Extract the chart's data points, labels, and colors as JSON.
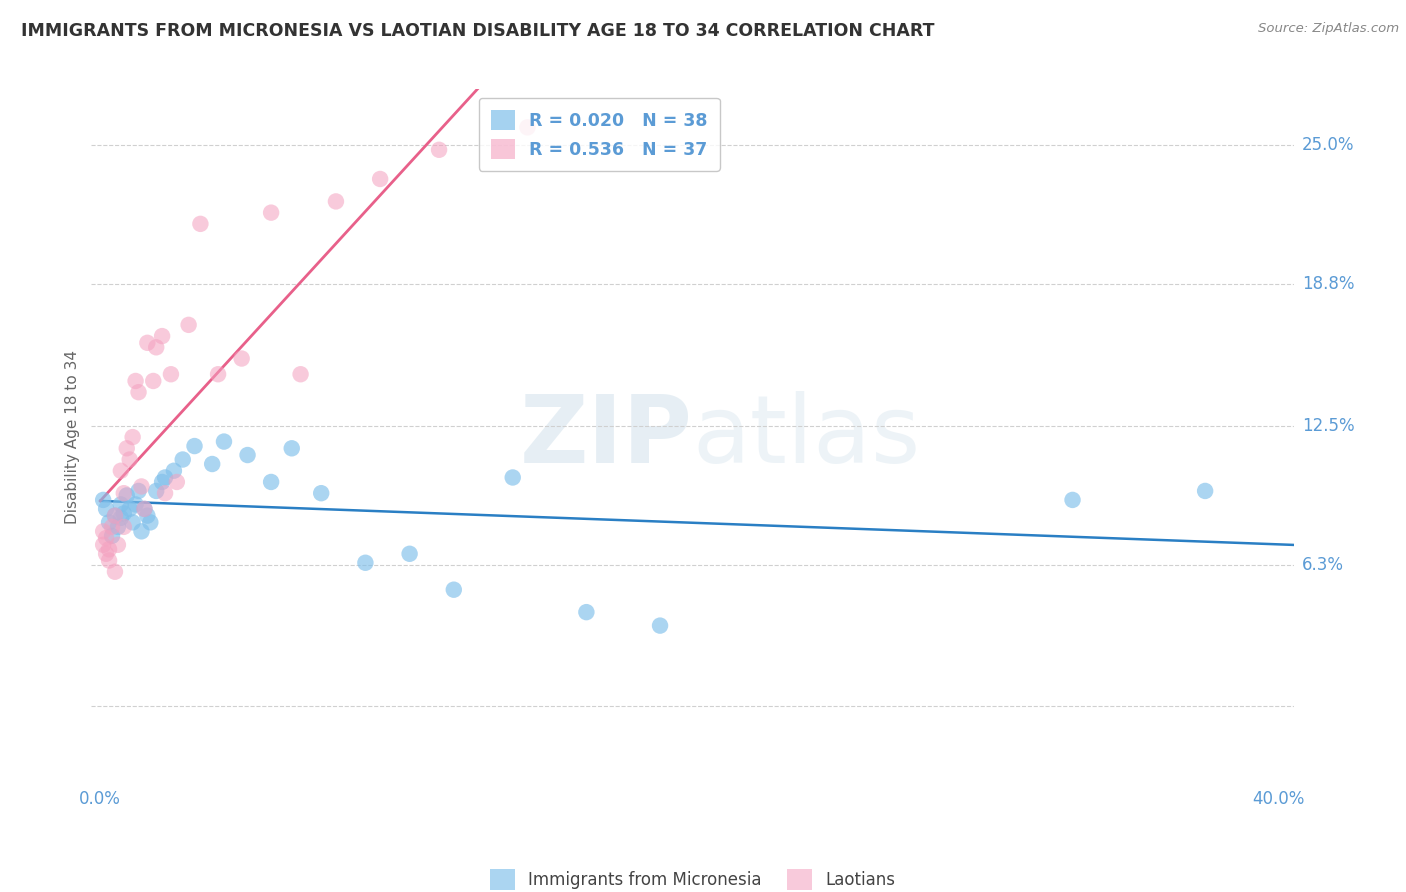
{
  "title": "IMMIGRANTS FROM MICRONESIA VS LAOTIAN DISABILITY AGE 18 TO 34 CORRELATION CHART",
  "source": "Source: ZipAtlas.com",
  "ylabel": "Disability Age 18 to 34",
  "xlim": [
    -0.003,
    0.405
  ],
  "ylim": [
    -0.035,
    0.275
  ],
  "ytick_vals": [
    0.0,
    0.063,
    0.125,
    0.188,
    0.25
  ],
  "ytick_labels": [
    "",
    "6.3%",
    "12.5%",
    "18.8%",
    "25.0%"
  ],
  "xtick_vals": [
    0.0,
    0.1,
    0.2,
    0.3,
    0.4
  ],
  "xtick_labels": [
    "0.0%",
    "",
    "",
    "",
    "40.0%"
  ],
  "micronesia_color": "#7fbfea",
  "laotian_color": "#f4a0bf",
  "micronesia_line_color": "#2a7fc4",
  "laotian_line_color": "#e8608a",
  "grid_color": "#d0d0d0",
  "axis_label_color": "#5b9bd5",
  "title_color": "#333333",
  "background_color": "#ffffff",
  "legend_text_color": "#5b9bd5",
  "micronesia_R": "0.020",
  "micronesia_N": "38",
  "laotian_R": "0.536",
  "laotian_N": "37",
  "micronesia_x": [
    0.001,
    0.002,
    0.003,
    0.004,
    0.005,
    0.006,
    0.007,
    0.007,
    0.008,
    0.009,
    0.01,
    0.011,
    0.012,
    0.013,
    0.014,
    0.015,
    0.016,
    0.017,
    0.019,
    0.021,
    0.022,
    0.025,
    0.028,
    0.032,
    0.038,
    0.042,
    0.05,
    0.058,
    0.065,
    0.075,
    0.09,
    0.105,
    0.12,
    0.14,
    0.165,
    0.19,
    0.33,
    0.375
  ],
  "micronesia_y": [
    0.092,
    0.088,
    0.082,
    0.076,
    0.085,
    0.08,
    0.09,
    0.084,
    0.086,
    0.094,
    0.088,
    0.082,
    0.09,
    0.096,
    0.078,
    0.088,
    0.085,
    0.082,
    0.096,
    0.1,
    0.102,
    0.105,
    0.11,
    0.116,
    0.108,
    0.118,
    0.112,
    0.1,
    0.115,
    0.095,
    0.064,
    0.068,
    0.052,
    0.102,
    0.042,
    0.036,
    0.092,
    0.096
  ],
  "laotian_x": [
    0.001,
    0.001,
    0.002,
    0.002,
    0.003,
    0.003,
    0.004,
    0.005,
    0.005,
    0.006,
    0.007,
    0.008,
    0.008,
    0.009,
    0.01,
    0.011,
    0.012,
    0.013,
    0.014,
    0.015,
    0.016,
    0.018,
    0.019,
    0.021,
    0.022,
    0.024,
    0.026,
    0.03,
    0.034,
    0.04,
    0.048,
    0.058,
    0.068,
    0.08,
    0.095,
    0.115,
    0.145
  ],
  "laotian_y": [
    0.078,
    0.072,
    0.068,
    0.075,
    0.065,
    0.07,
    0.08,
    0.06,
    0.085,
    0.072,
    0.105,
    0.095,
    0.08,
    0.115,
    0.11,
    0.12,
    0.145,
    0.14,
    0.098,
    0.088,
    0.162,
    0.145,
    0.16,
    0.165,
    0.095,
    0.148,
    0.1,
    0.17,
    0.215,
    0.148,
    0.155,
    0.22,
    0.148,
    0.225,
    0.235,
    0.248,
    0.258
  ]
}
